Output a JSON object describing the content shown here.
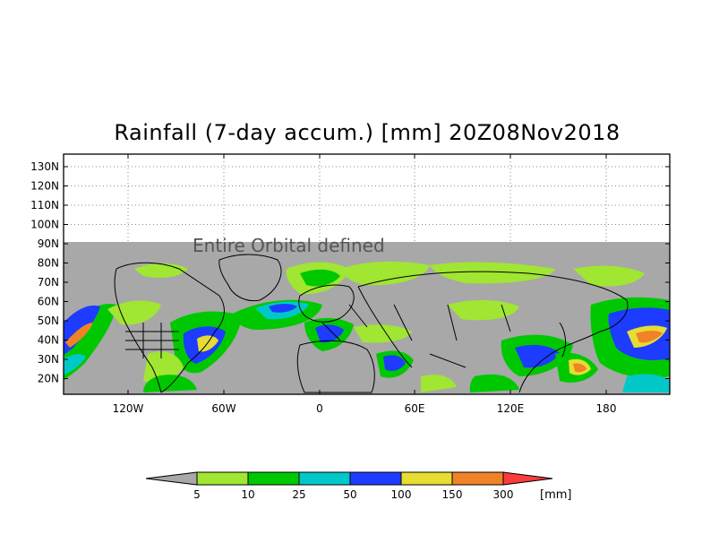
{
  "title": "Rainfall (7-day accum.) [mm] 20Z08Nov2018",
  "map": {
    "lat_labels": [
      "130N",
      "120N",
      "110N",
      "100N",
      "90N",
      "80N",
      "70N",
      "60N",
      "50N",
      "40N",
      "30N",
      "20N"
    ],
    "lon_labels": [
      "120W",
      "60W",
      "0",
      "60E",
      "120E",
      "180"
    ],
    "overlay_text": "Entire Orbital defined",
    "no_data_color": "#a8a8a8",
    "land_outline_color": "#000000"
  },
  "legend": {
    "unit": "[mm]",
    "thresholds": [
      "5",
      "10",
      "25",
      "50",
      "100",
      "150",
      "300"
    ],
    "colors": [
      "#a0e632",
      "#00c800",
      "#00c8c8",
      "#1e3cff",
      "#e6dc32",
      "#f08228",
      "#fa3c3c"
    ],
    "below_color": "#a8a8a8"
  }
}
